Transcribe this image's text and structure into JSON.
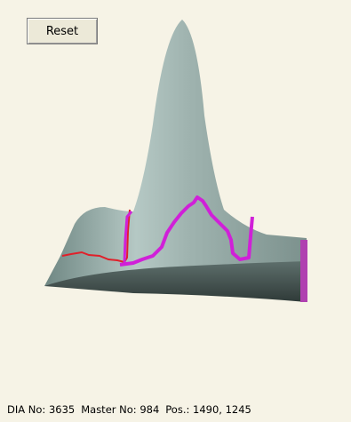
{
  "toolbar": {
    "reset_button": "Reset"
  },
  "status_bar": {
    "items": [
      "DIA No: 3635",
      "Master No: 984",
      "Pos.: 1490, 1245"
    ]
  }
}
